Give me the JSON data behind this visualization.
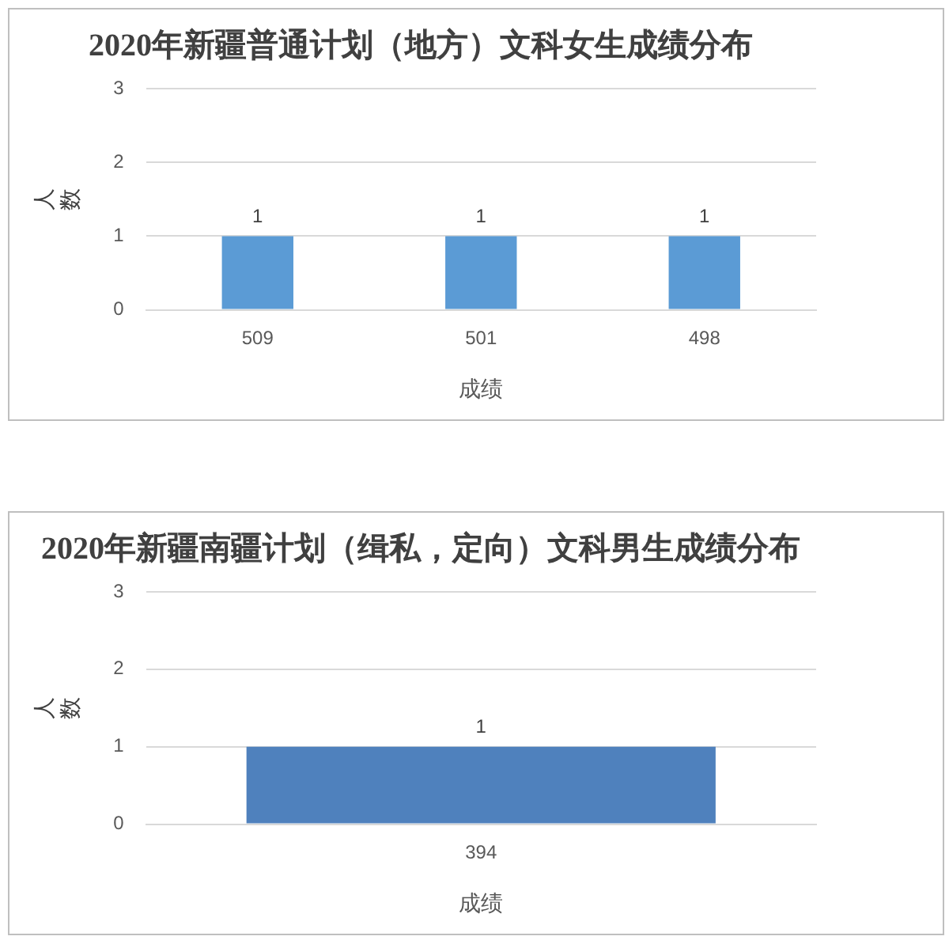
{
  "chart_data": [
    {
      "type": "bar",
      "title": "2020年新疆普通计划（地方）文科女生成绩分布",
      "xlabel": "成绩",
      "ylabel": "人数",
      "categories": [
        "509",
        "501",
        "498"
      ],
      "values": [
        1,
        1,
        1
      ],
      "color": "#5b9bd5",
      "ylim": [
        0,
        3
      ],
      "yticks": [
        0,
        1,
        2,
        3
      ],
      "grid": "y",
      "data_labels": true,
      "legend": false
    },
    {
      "type": "bar",
      "title": "2020年新疆南疆计划（缉私，定向）文科男生成绩分布",
      "xlabel": "成绩",
      "ylabel": "人数",
      "categories": [
        "394"
      ],
      "values": [
        1
      ],
      "color": "#4f81bd",
      "ylim": [
        0,
        3
      ],
      "yticks": [
        0,
        1,
        2,
        3
      ],
      "grid": "y",
      "data_labels": true,
      "legend": false
    }
  ]
}
